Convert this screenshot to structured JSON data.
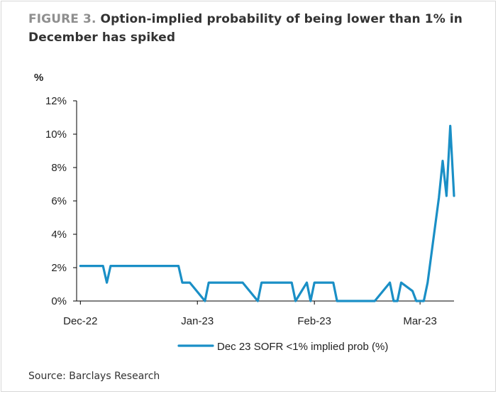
{
  "title": {
    "figure_label": "FIGURE 3.",
    "text": "Option-implied probability of being lower than 1% in December has spiked"
  },
  "source": "Source: Barclays Research",
  "colors": {
    "line": "#1a8fc6",
    "axis": "#000000",
    "figure_label": "#8f8f8f"
  },
  "chart_data": {
    "type": "line",
    "ylabel": "%",
    "ylim": [
      0,
      12
    ],
    "yticks": [
      0,
      2,
      4,
      6,
      8,
      10,
      12
    ],
    "ytick_labels": [
      "0%",
      "2%",
      "4%",
      "6%",
      "8%",
      "10%",
      "12%"
    ],
    "xticks": [
      "Dec-22",
      "Jan-23",
      "Feb-23",
      "Mar-23"
    ],
    "grid": false,
    "legend_position": "bottom",
    "series": [
      {
        "name": "Dec 23 SOFR <1% implied prob (%)",
        "x": [
          "2022-12-01",
          "2022-12-02",
          "2022-12-05",
          "2022-12-06",
          "2022-12-07",
          "2022-12-08",
          "2022-12-09",
          "2022-12-12",
          "2022-12-13",
          "2022-12-14",
          "2022-12-15",
          "2022-12-16",
          "2022-12-19",
          "2022-12-20",
          "2022-12-21",
          "2022-12-22",
          "2022-12-23",
          "2022-12-27",
          "2022-12-28",
          "2022-12-29",
          "2022-12-30",
          "2023-01-03",
          "2023-01-04",
          "2023-01-05",
          "2023-01-06",
          "2023-01-09",
          "2023-01-10",
          "2023-01-11",
          "2023-01-12",
          "2023-01-13",
          "2023-01-17",
          "2023-01-18",
          "2023-01-19",
          "2023-01-20",
          "2023-01-23",
          "2023-01-24",
          "2023-01-25",
          "2023-01-26",
          "2023-01-27",
          "2023-01-30",
          "2023-01-31",
          "2023-02-01",
          "2023-02-02",
          "2023-02-03",
          "2023-02-06",
          "2023-02-07",
          "2023-02-08",
          "2023-02-09",
          "2023-02-10",
          "2023-02-13",
          "2023-02-14",
          "2023-02-15",
          "2023-02-16",
          "2023-02-17",
          "2023-02-21",
          "2023-02-22",
          "2023-02-23",
          "2023-02-24",
          "2023-02-27",
          "2023-02-28",
          "2023-03-01",
          "2023-03-02",
          "2023-03-03",
          "2023-03-06",
          "2023-03-07",
          "2023-03-08",
          "2023-03-09",
          "2023-03-10"
        ],
        "y": [
          2.1,
          2.1,
          2.1,
          2.1,
          2.1,
          1.1,
          2.1,
          2.1,
          2.1,
          2.1,
          2.1,
          2.1,
          2.1,
          2.1,
          2.1,
          2.1,
          2.1,
          2.1,
          1.1,
          1.1,
          1.1,
          0,
          1.1,
          1.1,
          1.1,
          1.1,
          1.1,
          1.1,
          1.1,
          1.1,
          0,
          1.1,
          1.1,
          1.1,
          1.1,
          1.1,
          1.1,
          1.1,
          0,
          1.1,
          0,
          1.1,
          1.1,
          1.1,
          1.1,
          0,
          0,
          0,
          0,
          0,
          0,
          0,
          0,
          0,
          1.1,
          0,
          0,
          1.1,
          0.6,
          0,
          0,
          0,
          1.1,
          6.2,
          8.4,
          6.3,
          10.5,
          6.3
        ]
      }
    ]
  }
}
